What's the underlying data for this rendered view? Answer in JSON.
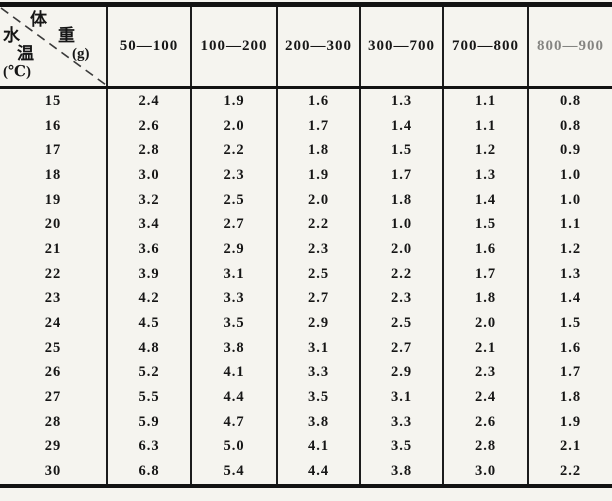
{
  "page": {
    "background": "#f5f4ef",
    "ink": "#161616",
    "border_color": "#121212"
  },
  "table": {
    "corner": {
      "weight_char_1": "体",
      "weight_char_2": "重",
      "weight_unit": "(g)",
      "temp_char_1": "水",
      "temp_char_2": "温",
      "temp_unit": "(℃)"
    },
    "columns": [
      "50—100",
      "100—200",
      "200—300",
      "300—700",
      "700—800",
      "800—900"
    ],
    "rows": [
      {
        "temp": "15",
        "values": [
          "2.4",
          "1.9",
          "1.6",
          "1.3",
          "1.1",
          "0.8"
        ]
      },
      {
        "temp": "16",
        "values": [
          "2.6",
          "2.0",
          "1.7",
          "1.4",
          "1.1",
          "0.8"
        ]
      },
      {
        "temp": "17",
        "values": [
          "2.8",
          "2.2",
          "1.8",
          "1.5",
          "1.2",
          "0.9"
        ]
      },
      {
        "temp": "18",
        "values": [
          "3.0",
          "2.3",
          "1.9",
          "1.7",
          "1.3",
          "1.0"
        ]
      },
      {
        "temp": "19",
        "values": [
          "3.2",
          "2.5",
          "2.0",
          "1.8",
          "1.4",
          "1.0"
        ]
      },
      {
        "temp": "20",
        "values": [
          "3.4",
          "2.7",
          "2.2",
          "1.0",
          "1.5",
          "1.1"
        ]
      },
      {
        "temp": "21",
        "values": [
          "3.6",
          "2.9",
          "2.3",
          "2.0",
          "1.6",
          "1.2"
        ]
      },
      {
        "temp": "22",
        "values": [
          "3.9",
          "3.1",
          "2.5",
          "2.2",
          "1.7",
          "1.3"
        ]
      },
      {
        "temp": "23",
        "values": [
          "4.2",
          "3.3",
          "2.7",
          "2.3",
          "1.8",
          "1.4"
        ]
      },
      {
        "temp": "24",
        "values": [
          "4.5",
          "3.5",
          "2.9",
          "2.5",
          "2.0",
          "1.5"
        ]
      },
      {
        "temp": "25",
        "values": [
          "4.8",
          "3.8",
          "3.1",
          "2.7",
          "2.1",
          "1.6"
        ]
      },
      {
        "temp": "26",
        "values": [
          "5.2",
          "4.1",
          "3.3",
          "2.9",
          "2.3",
          "1.7"
        ]
      },
      {
        "temp": "27",
        "values": [
          "5.5",
          "4.4",
          "3.5",
          "3.1",
          "2.4",
          "1.8"
        ]
      },
      {
        "temp": "28",
        "values": [
          "5.9",
          "4.7",
          "3.8",
          "3.3",
          "2.6",
          "1.9"
        ]
      },
      {
        "temp": "29",
        "values": [
          "6.3",
          "5.0",
          "4.1",
          "3.5",
          "2.8",
          "2.1"
        ]
      },
      {
        "temp": "30",
        "values": [
          "6.8",
          "5.4",
          "4.4",
          "3.8",
          "3.0",
          "2.2"
        ]
      }
    ]
  }
}
